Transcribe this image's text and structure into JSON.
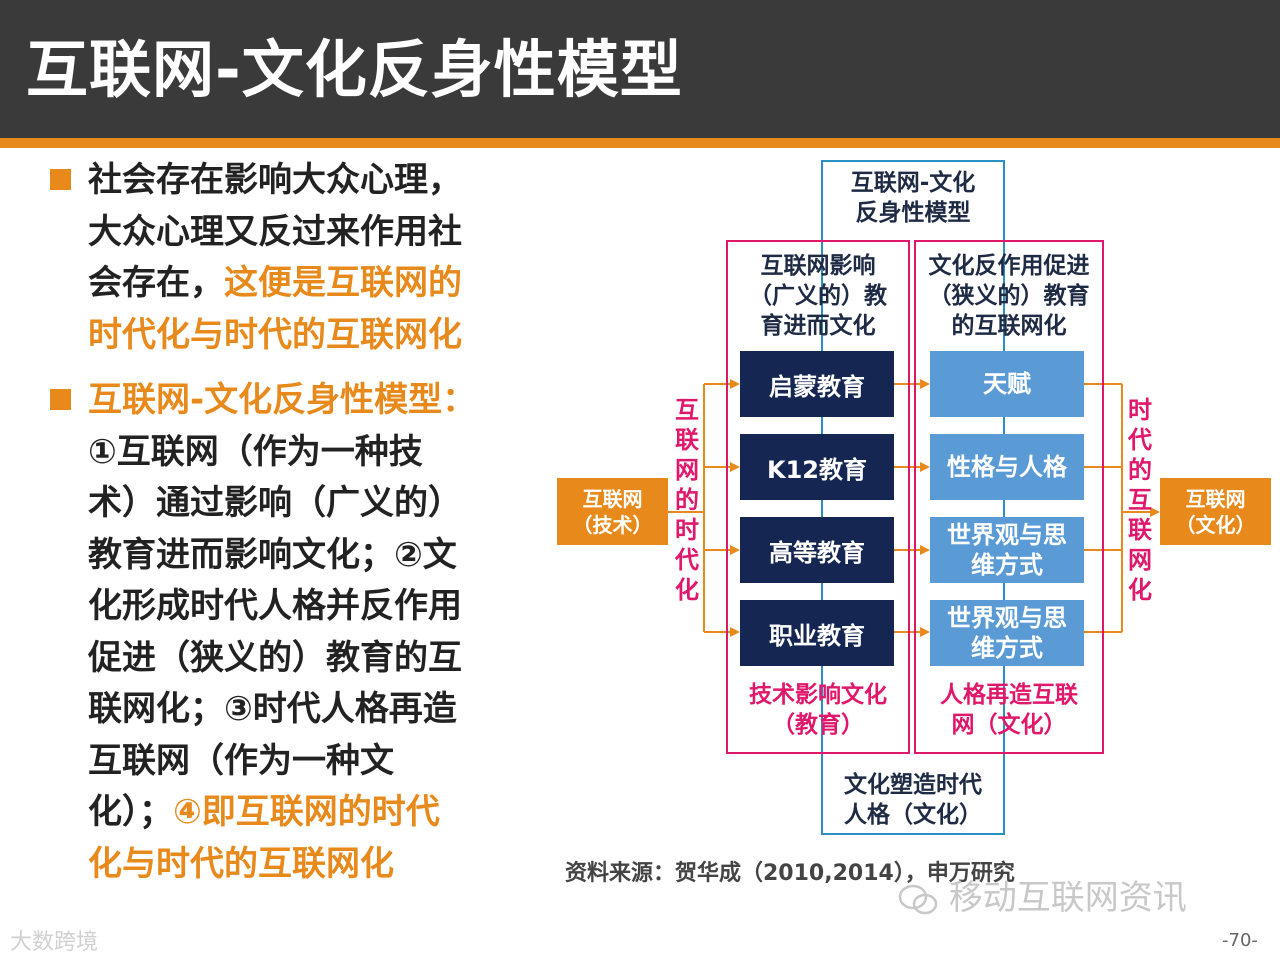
{
  "title": "互联网-文化反身性模型",
  "bullets": [
    {
      "lines": [
        {
          "segments": [
            {
              "text": "社会存在影响大众心理，",
              "color": "dark"
            }
          ]
        },
        {
          "segments": [
            {
              "text": "大众心理又反过来作用社",
              "color": "dark"
            }
          ]
        },
        {
          "segments": [
            {
              "text": "会存在，",
              "color": "dark"
            },
            {
              "text": "这便是互联网的",
              "color": "orange"
            }
          ]
        },
        {
          "segments": [
            {
              "text": "时代化与时代的互联网化",
              "color": "orange"
            }
          ]
        }
      ]
    },
    {
      "lines": [
        {
          "segments": [
            {
              "text": "互联网-文化反身性模型：",
              "color": "orange"
            }
          ]
        },
        {
          "segments": [
            {
              "text": "①互联网（作为一种技",
              "color": "dark"
            }
          ]
        },
        {
          "segments": [
            {
              "text": "术）通过影响（广义的）",
              "color": "dark"
            }
          ]
        },
        {
          "segments": [
            {
              "text": "教育进而影响文化；②文",
              "color": "dark"
            }
          ]
        },
        {
          "segments": [
            {
              "text": "化形成时代人格并反作用",
              "color": "dark"
            }
          ]
        },
        {
          "segments": [
            {
              "text": "促进（狭义的）教育的互",
              "color": "dark"
            }
          ]
        },
        {
          "segments": [
            {
              "text": "联网化；③时代人格再造",
              "color": "dark"
            }
          ]
        },
        {
          "segments": [
            {
              "text": "互联网（作为一种文",
              "color": "dark"
            }
          ]
        },
        {
          "segments": [
            {
              "text": "化）；",
              "color": "dark"
            },
            {
              "text": "④即互联网的时代",
              "color": "orange"
            }
          ]
        },
        {
          "segments": [
            {
              "text": "化与时代的互联网化",
              "color": "orange"
            }
          ]
        }
      ]
    }
  ],
  "diagram": {
    "top_label": [
      "互联网-文化",
      "反身性模型"
    ],
    "bottom_label": [
      "文化塑造时代",
      "人格（文化）"
    ],
    "left_column_title": [
      "互联网影响",
      "（广义的）教",
      "育进而文化"
    ],
    "right_column_title": [
      "文化反作用促进",
      "（狭义的）教育",
      "的互联网化"
    ],
    "left_boxes": [
      "启蒙教育",
      "K12教育",
      "高等教育",
      "职业教育"
    ],
    "right_boxes": [
      [
        "天赋"
      ],
      [
        "性格与人格"
      ],
      [
        "世界观与思",
        "维方式"
      ],
      [
        "世界观与思",
        "维方式"
      ]
    ],
    "left_caption": [
      "技术影响文化",
      "（教育）"
    ],
    "right_caption": [
      "人格再造互联",
      "网（文化）"
    ],
    "input_box": [
      "互联网",
      "（技术）"
    ],
    "output_box": [
      "互联网",
      "（文化）"
    ],
    "left_vertical": "互联网的时代化",
    "right_vertical": "时代的互联网化"
  },
  "source": "资料来源：贺华成（2010,2014），申万研究",
  "watermark": "移动互联网资讯",
  "brand": "大数跨境",
  "page_number": "-70-",
  "colors": {
    "orange": "#e8891b",
    "dark_text": "#222222",
    "navy": "#162652",
    "light_blue": "#5b9bd5",
    "pink": "#e0186c",
    "title_bar": "#3a3a3a"
  }
}
